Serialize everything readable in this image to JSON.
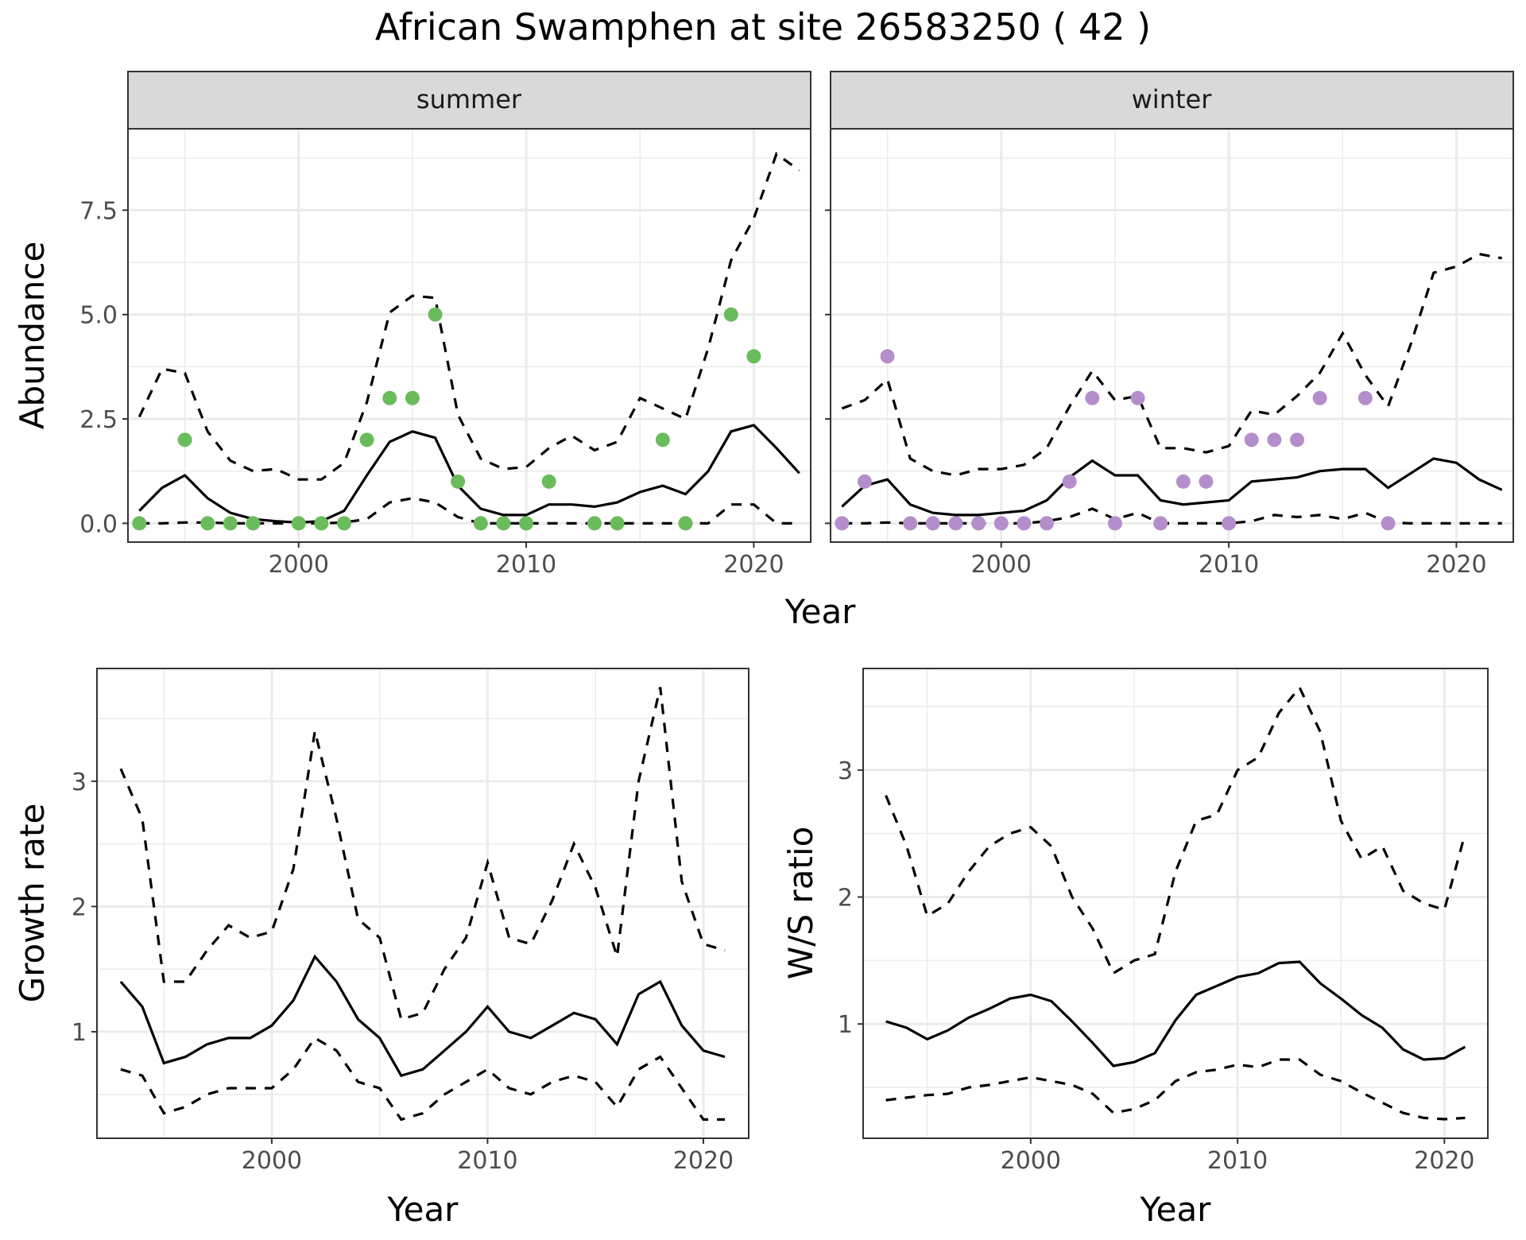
{
  "figure": {
    "title": "African Swamphen at site 26583250 ( 42 )"
  },
  "colors": {
    "summer_points": "#6abb5c",
    "winter_points": "#b48ecb",
    "line": "#000000",
    "strip_bg": "#d9d9d9",
    "grid": "#ebebeb"
  },
  "chart_data": [
    {
      "type": "line",
      "panel": "summer",
      "facet_label": "summer",
      "xlabel": "Year",
      "ylabel": "Abundance",
      "xlim": [
        1992.5,
        2022.5
      ],
      "ylim": [
        -0.45,
        9.45
      ],
      "xticks": [
        2000,
        2010,
        2020
      ],
      "yticks": [
        0.0,
        2.5,
        5.0,
        7.5
      ],
      "ytick_labels": [
        "0.0",
        "2.5",
        "5.0",
        "7.5"
      ],
      "grid": true,
      "point_color": "#6abb5c",
      "x": [
        1993,
        1994,
        1995,
        1996,
        1997,
        1998,
        1999,
        2000,
        2001,
        2002,
        2003,
        2004,
        2005,
        2006,
        2007,
        2008,
        2009,
        2010,
        2011,
        2012,
        2013,
        2014,
        2015,
        2016,
        2017,
        2018,
        2019,
        2020,
        2021,
        2022
      ],
      "series": [
        {
          "style": "dashed",
          "values": [
            2.55,
            3.7,
            3.6,
            2.2,
            1.5,
            1.25,
            1.3,
            1.05,
            1.05,
            1.45,
            2.9,
            5.05,
            5.45,
            5.4,
            2.6,
            1.55,
            1.3,
            1.35,
            1.8,
            2.1,
            1.75,
            1.95,
            3.0,
            2.75,
            2.5,
            4.2,
            6.3,
            7.3,
            8.85,
            8.45
          ]
        },
        {
          "style": "solid",
          "values": [
            0.3,
            0.85,
            1.15,
            0.6,
            0.25,
            0.1,
            0.05,
            0.02,
            0.05,
            0.3,
            1.15,
            1.95,
            2.2,
            2.05,
            0.9,
            0.35,
            0.2,
            0.2,
            0.45,
            0.45,
            0.4,
            0.5,
            0.75,
            0.9,
            0.7,
            1.25,
            2.2,
            2.35,
            1.8,
            1.2
          ]
        },
        {
          "style": "dashed",
          "values": [
            0,
            0,
            0.02,
            0.02,
            0,
            0,
            0,
            0,
            0,
            0.02,
            0.1,
            0.5,
            0.6,
            0.5,
            0.15,
            0,
            0,
            0,
            0,
            0,
            0,
            0,
            0,
            0,
            0,
            0,
            0.45,
            0.45,
            0,
            0
          ]
        }
      ],
      "points": {
        "x": [
          1993,
          1995,
          1996,
          1997,
          1998,
          2000,
          2001,
          2002,
          2003,
          2004,
          2005,
          2006,
          2007,
          2008,
          2009,
          2010,
          2011,
          2013,
          2014,
          2016,
          2017,
          2019,
          2020
        ],
        "y": [
          0,
          2,
          0,
          0,
          0,
          0,
          0,
          0,
          2,
          3,
          3,
          5,
          1,
          0,
          0,
          0,
          1,
          0,
          0,
          2,
          0,
          5,
          4
        ]
      }
    },
    {
      "type": "line",
      "panel": "winter",
      "facet_label": "winter",
      "xlabel": "Year",
      "ylabel": "Abundance",
      "xlim": [
        1992.5,
        2022.5
      ],
      "ylim": [
        -0.45,
        9.45
      ],
      "xticks": [
        2000,
        2010,
        2020
      ],
      "yticks": [
        0.0,
        2.5,
        5.0,
        7.5
      ],
      "grid": true,
      "point_color": "#b48ecb",
      "x": [
        1993,
        1994,
        1995,
        1996,
        1997,
        1998,
        1999,
        2000,
        2001,
        2002,
        2003,
        2004,
        2005,
        2006,
        2007,
        2008,
        2009,
        2010,
        2011,
        2012,
        2013,
        2014,
        2015,
        2016,
        2017,
        2018,
        2019,
        2020,
        2021,
        2022
      ],
      "series": [
        {
          "style": "dashed",
          "values": [
            2.75,
            2.95,
            3.45,
            1.55,
            1.25,
            1.15,
            1.3,
            1.3,
            1.4,
            1.8,
            2.8,
            3.65,
            2.95,
            3.05,
            1.8,
            1.8,
            1.7,
            1.85,
            2.7,
            2.6,
            3.05,
            3.6,
            4.55,
            3.55,
            2.8,
            4.3,
            6.0,
            6.15,
            6.45,
            6.35
          ]
        },
        {
          "style": "solid",
          "values": [
            0.4,
            0.9,
            1.05,
            0.45,
            0.25,
            0.2,
            0.2,
            0.25,
            0.3,
            0.55,
            1.1,
            1.5,
            1.15,
            1.15,
            0.55,
            0.45,
            0.5,
            0.55,
            1.0,
            1.05,
            1.1,
            1.25,
            1.3,
            1.3,
            0.85,
            1.2,
            1.55,
            1.45,
            1.05,
            0.8
          ]
        },
        {
          "style": "dashed",
          "values": [
            0,
            0,
            0.02,
            0,
            0,
            0,
            0,
            0,
            0,
            0.05,
            0.15,
            0.35,
            0.1,
            0.25,
            0,
            0,
            0,
            0,
            0.05,
            0.2,
            0.15,
            0.2,
            0.1,
            0.25,
            0.02,
            0,
            0,
            0,
            0,
            0
          ]
        }
      ],
      "points": {
        "x": [
          1993,
          1994,
          1995,
          1996,
          1997,
          1998,
          1999,
          2000,
          2001,
          2002,
          2003,
          2004,
          2005,
          2006,
          2007,
          2008,
          2009,
          2010,
          2011,
          2012,
          2013,
          2014,
          2016,
          2017
        ],
        "y": [
          0,
          1,
          4,
          0,
          0,
          0,
          0,
          0,
          0,
          0,
          1,
          3,
          0,
          3,
          0,
          1,
          1,
          0,
          2,
          2,
          2,
          3,
          3,
          0
        ]
      }
    },
    {
      "type": "line",
      "panel": "growth",
      "xlabel": "Year",
      "ylabel": "Growth rate",
      "xlim": [
        1991.9,
        2022.1
      ],
      "ylim": [
        0.15,
        3.9
      ],
      "xticks": [
        2000,
        2010,
        2020
      ],
      "yticks": [
        1,
        2,
        3
      ],
      "grid": true,
      "x": [
        1993,
        1994,
        1995,
        1996,
        1997,
        1998,
        1999,
        2000,
        2001,
        2002,
        2003,
        2004,
        2005,
        2006,
        2007,
        2008,
        2009,
        2010,
        2011,
        2012,
        2013,
        2014,
        2015,
        2016,
        2017,
        2018,
        2019,
        2020,
        2021
      ],
      "series": [
        {
          "style": "dashed",
          "values": [
            3.1,
            2.7,
            1.4,
            1.4,
            1.65,
            1.85,
            1.75,
            1.8,
            2.3,
            3.4,
            2.7,
            1.9,
            1.75,
            1.1,
            1.15,
            1.5,
            1.75,
            2.35,
            1.75,
            1.7,
            2.05,
            2.5,
            2.15,
            1.6,
            3.0,
            3.75,
            2.2,
            1.7,
            1.65
          ]
        },
        {
          "style": "solid",
          "values": [
            1.4,
            1.2,
            0.75,
            0.8,
            0.9,
            0.95,
            0.95,
            1.05,
            1.25,
            1.6,
            1.4,
            1.1,
            0.95,
            0.65,
            0.7,
            0.85,
            1.0,
            1.2,
            1.0,
            0.95,
            1.05,
            1.15,
            1.1,
            0.9,
            1.3,
            1.4,
            1.05,
            0.85,
            0.8
          ]
        },
        {
          "style": "dashed",
          "values": [
            0.7,
            0.65,
            0.35,
            0.4,
            0.5,
            0.55,
            0.55,
            0.55,
            0.7,
            0.95,
            0.85,
            0.6,
            0.55,
            0.3,
            0.35,
            0.5,
            0.6,
            0.7,
            0.55,
            0.5,
            0.6,
            0.65,
            0.6,
            0.4,
            0.7,
            0.8,
            0.55,
            0.3,
            0.3
          ]
        }
      ]
    },
    {
      "type": "line",
      "panel": "ws_ratio",
      "xlabel": "Year",
      "ylabel": "W/S ratio",
      "xlim": [
        1991.9,
        2022.1
      ],
      "ylim": [
        0.1,
        3.8
      ],
      "xticks": [
        2000,
        2010,
        2020
      ],
      "yticks": [
        1,
        2,
        3
      ],
      "grid": true,
      "x": [
        1993,
        1994,
        1995,
        1996,
        1997,
        1998,
        1999,
        2000,
        2001,
        2002,
        2003,
        2004,
        2005,
        2006,
        2007,
        2008,
        2009,
        2010,
        2011,
        2012,
        2013,
        2014,
        2015,
        2016,
        2017,
        2018,
        2019,
        2020,
        2021
      ],
      "series": [
        {
          "style": "dashed",
          "values": [
            2.8,
            2.4,
            1.85,
            1.95,
            2.2,
            2.4,
            2.5,
            2.55,
            2.4,
            2.0,
            1.75,
            1.4,
            1.5,
            1.55,
            2.2,
            2.6,
            2.65,
            3.0,
            3.1,
            3.45,
            3.65,
            3.3,
            2.6,
            2.3,
            2.4,
            2.05,
            1.95,
            1.9,
            2.5
          ]
        },
        {
          "style": "solid",
          "values": [
            1.02,
            0.97,
            0.88,
            0.95,
            1.05,
            1.12,
            1.2,
            1.23,
            1.18,
            1.02,
            0.85,
            0.67,
            0.7,
            0.77,
            1.03,
            1.23,
            1.3,
            1.37,
            1.4,
            1.48,
            1.49,
            1.32,
            1.2,
            1.07,
            0.97,
            0.8,
            0.72,
            0.73,
            0.82
          ]
        },
        {
          "style": "dashed",
          "values": [
            0.4,
            0.42,
            0.44,
            0.45,
            0.5,
            0.52,
            0.55,
            0.58,
            0.55,
            0.52,
            0.45,
            0.3,
            0.33,
            0.4,
            0.55,
            0.62,
            0.64,
            0.68,
            0.66,
            0.72,
            0.72,
            0.6,
            0.55,
            0.46,
            0.38,
            0.3,
            0.26,
            0.25,
            0.26
          ]
        }
      ]
    }
  ]
}
